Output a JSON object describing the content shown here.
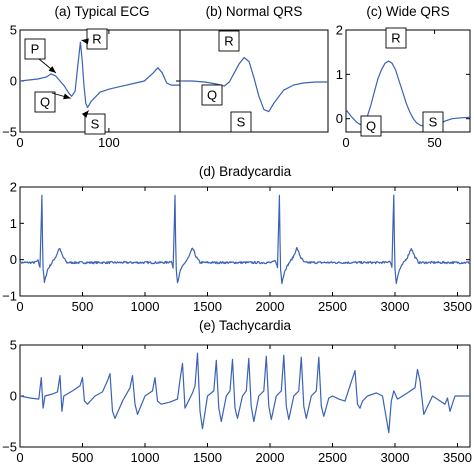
{
  "chart_data": [
    {
      "id": "a",
      "type": "line",
      "title": "(a) Typical ECG",
      "xlim": [
        0,
        180
      ],
      "ylim": [
        -5,
        5
      ],
      "xticks": [
        0,
        100
      ],
      "yticks": [
        5,
        0,
        -5
      ],
      "series": [
        {
          "x": [
            0,
            10,
            20,
            30,
            35,
            40,
            45,
            50,
            55,
            58,
            62,
            65,
            68,
            70,
            72,
            74,
            76,
            80,
            90,
            100,
            110,
            120,
            130,
            140,
            150,
            155,
            160,
            165,
            170,
            180
          ],
          "values": [
            0,
            0.1,
            0.2,
            0.4,
            0.7,
            0.5,
            0,
            -0.5,
            -1.2,
            -1.5,
            -1,
            1.5,
            3.8,
            2,
            -0.5,
            -2.2,
            -2.6,
            -2,
            -1.1,
            -0.8,
            -0.6,
            -0.4,
            -0.2,
            0,
            0.8,
            1.3,
            0.8,
            -0.2,
            -0.4,
            -0.4
          ]
        }
      ],
      "annotations": [
        {
          "text": "P",
          "x": 37,
          "y": 0.7
        },
        {
          "text": "Q",
          "x": 57,
          "y": -1.5
        },
        {
          "text": "R",
          "x": 68,
          "y": 3.8
        },
        {
          "text": "S",
          "x": 75,
          "y": -2.6
        }
      ]
    },
    {
      "id": "b",
      "type": "line",
      "title": "(b) Normal QRS",
      "xlim": [
        0,
        60
      ],
      "ylim": [
        -5,
        5
      ],
      "xticks": [],
      "yticks": [],
      "series": [
        {
          "x": [
            0,
            5,
            10,
            15,
            18,
            20,
            22,
            24,
            26,
            28,
            30,
            32,
            34,
            36,
            38,
            42,
            46,
            50,
            55,
            60
          ],
          "values": [
            0,
            0,
            -0.1,
            -0.3,
            -0.5,
            -0.1,
            0.8,
            1.7,
            2.3,
            1.9,
            0.3,
            -1.5,
            -2.8,
            -3,
            -2.2,
            -0.9,
            -0.4,
            -0.2,
            -0.1,
            -0.1
          ]
        }
      ],
      "annotations": [
        {
          "text": "R",
          "x": 26,
          "y": 2.3
        },
        {
          "text": "Q",
          "x": 18,
          "y": -0.5
        },
        {
          "text": "S",
          "x": 36,
          "y": -3
        }
      ]
    },
    {
      "id": "c",
      "type": "line",
      "title": "(c) Wide QRS",
      "xlim": [
        0,
        70
      ],
      "ylim": [
        -0.3,
        2
      ],
      "xticks": [
        0,
        50
      ],
      "yticks": [
        2,
        1,
        0
      ],
      "series": [
        {
          "x": [
            0,
            3,
            6,
            8,
            10,
            12,
            14,
            16,
            18,
            20,
            22,
            24,
            26,
            28,
            30,
            32,
            34,
            36,
            38,
            40,
            42,
            44,
            46,
            48,
            50,
            53,
            56,
            60,
            65,
            70
          ],
          "values": [
            0.2,
            0.05,
            -0.08,
            -0.13,
            -0.1,
            0.05,
            0.3,
            0.6,
            0.9,
            1.1,
            1.25,
            1.3,
            1.25,
            1.1,
            0.85,
            0.6,
            0.35,
            0.15,
            0.0,
            -0.1,
            -0.15,
            -0.17,
            -0.18,
            -0.18,
            -0.17,
            -0.12,
            -0.05,
            0.0,
            0.02,
            0.03
          ]
        }
      ],
      "annotations": [
        {
          "text": "R",
          "x": 24,
          "y": 1.3
        },
        {
          "text": "Q",
          "x": 8,
          "y": -0.13
        },
        {
          "text": "S",
          "x": 47,
          "y": -0.18
        }
      ]
    },
    {
      "id": "d",
      "type": "line",
      "title": "(d) Bradycardia",
      "xlim": [
        0,
        3600
      ],
      "ylim": [
        -1,
        2
      ],
      "xticks": [
        0,
        500,
        1000,
        1500,
        2000,
        2500,
        3000,
        3500
      ],
      "yticks": [
        2,
        1,
        0,
        -1
      ],
      "beats": [
        175,
        1240,
        2075,
        2990
      ],
      "beat_profile": {
        "dx": [
          -60,
          -30,
          -15,
          -5,
          0,
          8,
          20,
          45,
          80,
          110,
          140,
          170,
          200
        ],
        "dy": [
          0,
          0.05,
          -0.15,
          1.2,
          1.85,
          -0.1,
          -0.55,
          -0.2,
          0,
          0.15,
          0.4,
          0.15,
          0
        ]
      },
      "baseline": -0.08
    },
    {
      "id": "e",
      "type": "line",
      "title": "(e) Tachycardia",
      "xlim": [
        0,
        3600
      ],
      "ylim": [
        -5,
        5
      ],
      "xticks": [
        0,
        500,
        1000,
        1500,
        2000,
        2500,
        3000,
        3500
      ],
      "yticks": [
        5,
        0,
        -5
      ],
      "series": [
        {
          "x": [
            0,
            80,
            150,
            170,
            185,
            200,
            260,
            300,
            320,
            335,
            350,
            420,
            480,
            500,
            515,
            540,
            600,
            660,
            700,
            720,
            740,
            760,
            820,
            880,
            900,
            920,
            940,
            1000,
            1060,
            1080,
            1100,
            1130,
            1200,
            1260,
            1280,
            1300,
            1320,
            1380,
            1400,
            1420,
            1440,
            1460,
            1500,
            1550,
            1570,
            1590,
            1610,
            1650,
            1680,
            1700,
            1720,
            1740,
            1780,
            1810,
            1830,
            1850,
            1870,
            1910,
            1950,
            1970,
            1990,
            2010,
            2050,
            2090,
            2110,
            2130,
            2150,
            2190,
            2230,
            2250,
            2270,
            2290,
            2330,
            2370,
            2390,
            2410,
            2430,
            2470,
            2500,
            2550,
            2600,
            2680,
            2700,
            2720,
            2740,
            2780,
            2850,
            2900,
            2950,
            2970,
            2990,
            3020,
            3100,
            3160,
            3180,
            3200,
            3230,
            3300,
            3350,
            3400,
            3420,
            3440,
            3480,
            3550,
            3600
          ],
          "values": [
            0,
            -0.2,
            -0.3,
            1.8,
            -1.2,
            0,
            0.2,
            0.4,
            2,
            -1.5,
            0,
            0.5,
            1,
            1.8,
            -0.5,
            -0.8,
            0,
            0.4,
            1.5,
            2.2,
            -1.5,
            -2.2,
            -0.5,
            0.8,
            2,
            -0.8,
            -1.8,
            0,
            0.5,
            1.8,
            -0.5,
            -0.8,
            -0.6,
            -0.3,
            1.6,
            3.2,
            -1.2,
            0.3,
            1,
            4.2,
            -1.5,
            -3.2,
            0,
            0.5,
            3.5,
            -1.2,
            -2.5,
            0,
            0.5,
            3.6,
            -1.2,
            -2.2,
            0,
            0.5,
            3.7,
            -1,
            -2.5,
            0,
            0.5,
            3.9,
            -1,
            -2.3,
            0,
            0.5,
            4,
            -1,
            -2.3,
            0,
            0.5,
            3.8,
            -1,
            -2.2,
            0,
            0.5,
            3.8,
            -1,
            -2,
            -0.2,
            0,
            -0.3,
            -0.5,
            2.5,
            -0.8,
            -1.2,
            -0.5,
            0,
            0.3,
            0,
            -3.6,
            -0.5,
            0.5,
            -0.3,
            0.3,
            0.8,
            2.6,
            1.5,
            -1.8,
            0,
            -0.4,
            -0.8,
            -0.2,
            -1.5,
            0,
            0,
            0
          ]
        }
      ]
    }
  ]
}
